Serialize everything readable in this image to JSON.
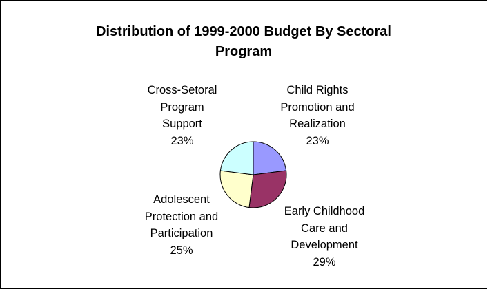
{
  "chart_data": {
    "type": "pie",
    "title_lines": [
      "Distribution of 1999-2000 Budget By Sectoral",
      "Program"
    ],
    "slices": [
      {
        "label_lines": [
          "Child Rights",
          "Promotion and",
          "Realization"
        ],
        "percent_label": "23%",
        "value": 23,
        "color": "#9999ff"
      },
      {
        "label_lines": [
          "Early Childhood",
          "Care and",
          "Development"
        ],
        "percent_label": "29%",
        "value": 29,
        "color": "#993366"
      },
      {
        "label_lines": [
          "Adolescent",
          "Protection and",
          "Participation"
        ],
        "percent_label": "25%",
        "value": 25,
        "color": "#ffffcc"
      },
      {
        "label_lines": [
          "Cross-Setoral",
          "Program",
          "Support"
        ],
        "percent_label": "23%",
        "value": 23,
        "color": "#ccffff"
      }
    ]
  }
}
